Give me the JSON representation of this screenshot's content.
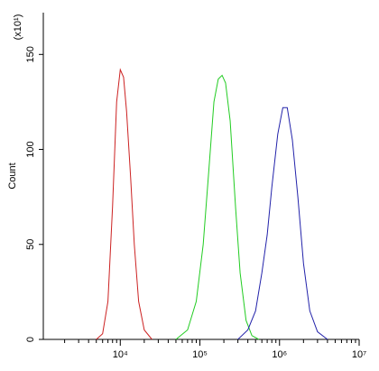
{
  "chart_data": {
    "type": "line",
    "ylabel": "Count",
    "yunit": "(x10¹)",
    "xlog": true,
    "xlim": [
      1080,
      10000000
    ],
    "ylim": [
      0,
      172
    ],
    "xticks": [
      {
        "value": 10000,
        "label": "10⁴"
      },
      {
        "value": 100000,
        "label": "10⁵"
      },
      {
        "value": 1000000,
        "label": "10⁶"
      },
      {
        "value": 10000000,
        "label": "10⁷"
      }
    ],
    "xminorticks": [
      2000,
      3000,
      4000,
      5000,
      6000,
      7000,
      8000,
      9000,
      20000,
      30000,
      40000,
      50000,
      60000,
      70000,
      80000,
      90000,
      200000,
      300000,
      400000,
      500000,
      600000,
      700000,
      800000,
      900000,
      2000000,
      3000000,
      4000000,
      5000000,
      6000000,
      7000000,
      8000000,
      9000000
    ],
    "yticks": [
      0,
      50,
      100,
      150
    ],
    "series": [
      {
        "color": "#cc2222",
        "x": [
          5000,
          6000,
          7000,
          8000,
          9000,
          10000,
          11000,
          12000,
          13500,
          15000,
          17000,
          20000,
          25000
        ],
        "values": [
          0,
          3,
          20,
          70,
          125,
          142,
          138,
          120,
          85,
          50,
          20,
          5,
          0
        ]
      },
      {
        "color": "#22cc22",
        "x": [
          50000,
          70000,
          90000,
          110000,
          130000,
          150000,
          170000,
          190000,
          210000,
          240000,
          280000,
          320000,
          380000,
          450000,
          550000
        ],
        "values": [
          0,
          5,
          20,
          50,
          90,
          125,
          137,
          139,
          135,
          115,
          70,
          35,
          10,
          2,
          0
        ]
      },
      {
        "color": "#2222aa",
        "x": [
          300000,
          400000,
          500000,
          600000,
          700000,
          800000,
          950000,
          1100000,
          1250000,
          1450000,
          1700000,
          2000000,
          2400000,
          3000000,
          4000000
        ],
        "values": [
          0,
          5,
          15,
          35,
          55,
          80,
          108,
          122,
          122,
          105,
          75,
          40,
          15,
          4,
          0
        ]
      }
    ]
  }
}
